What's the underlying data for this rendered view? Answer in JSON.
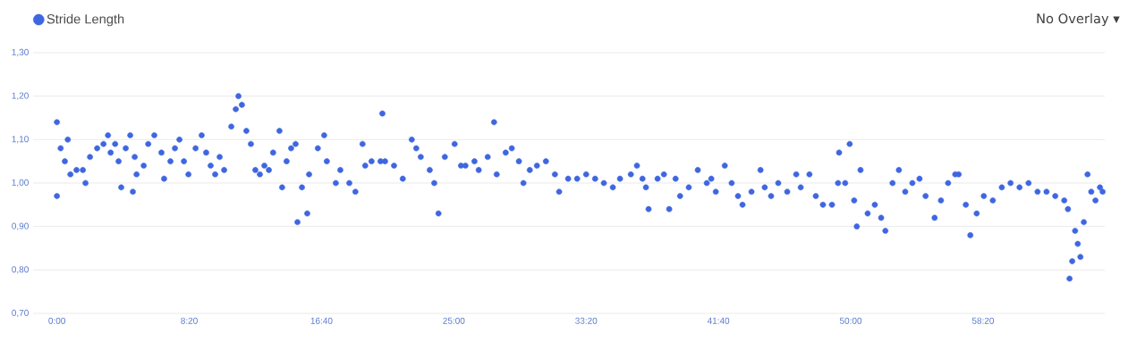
{
  "chart_data": {
    "type": "scatter",
    "legend": "top left",
    "grid": "y",
    "annotations": [
      "No Overlay ▾"
    ],
    "xlim": [
      -90,
      3960
    ],
    "ylim": [
      0.7,
      1.3
    ],
    "xticks": [
      {
        "value": 0,
        "label": "0:00"
      },
      {
        "value": 500,
        "label": "8:20"
      },
      {
        "value": 1000,
        "label": "16:40"
      },
      {
        "value": 1500,
        "label": "25:00"
      },
      {
        "value": 2000,
        "label": "33:20"
      },
      {
        "value": 2500,
        "label": "41:40"
      },
      {
        "value": 3000,
        "label": "50:00"
      },
      {
        "value": 3500,
        "label": "58:20"
      }
    ],
    "yticks": [
      {
        "value": 0.7,
        "label": "0,70"
      },
      {
        "value": 0.8,
        "label": "0,80"
      },
      {
        "value": 0.9,
        "label": "0,90"
      },
      {
        "value": 1.0,
        "label": "1,00"
      },
      {
        "value": 1.1,
        "label": "1,10"
      },
      {
        "value": 1.2,
        "label": "1,20"
      },
      {
        "value": 1.3,
        "label": "1,30"
      }
    ],
    "series": [
      {
        "name": "Stride Length",
        "color": "#3f66e0",
        "x": [
          0,
          0,
          14,
          30,
          41,
          51,
          74,
          98,
          108,
          125,
          152,
          176,
          193,
          203,
          220,
          233,
          243,
          260,
          277,
          287,
          294,
          301,
          328,
          345,
          368,
          395,
          405,
          429,
          446,
          463,
          480,
          497,
          524,
          547,
          564,
          581,
          598,
          615,
          632,
          659,
          676,
          686,
          699,
          716,
          733,
          750,
          767,
          784,
          801,
          817,
          841,
          851,
          868,
          885,
          902,
          909,
          926,
          946,
          953,
          986,
          1010,
          1020,
          1054,
          1071,
          1105,
          1128,
          1155,
          1165,
          1189,
          1223,
          1230,
          1240,
          1274,
          1307,
          1341,
          1358,
          1375,
          1409,
          1426,
          1442,
          1466,
          1503,
          1527,
          1544,
          1578,
          1594,
          1628,
          1652,
          1662,
          1696,
          1719,
          1746,
          1763,
          1787,
          1814,
          1848,
          1882,
          1898,
          1932,
          1966,
          2000,
          2034,
          2067,
          2101,
          2128,
          2169,
          2192,
          2213,
          2226,
          2236,
          2270,
          2294,
          2314,
          2338,
          2355,
          2388,
          2422,
          2456,
          2473,
          2490,
          2524,
          2550,
          2574,
          2591,
          2625,
          2659,
          2675,
          2699,
          2726,
          2760,
          2794,
          2811,
          2844,
          2868,
          2895,
          2929,
          2952,
          2956,
          2979,
          2996,
          3013,
          3023,
          3037,
          3064,
          3091,
          3115,
          3131,
          3158,
          3182,
          3206,
          3233,
          3260,
          3283,
          3317,
          3341,
          3368,
          3395,
          3408,
          3435,
          3452,
          3476,
          3503,
          3537,
          3571,
          3604,
          3638,
          3672,
          3706,
          3740,
          3773,
          3807,
          3821,
          3827,
          3837,
          3848,
          3858,
          3868,
          3881,
          3895,
          3909,
          3925,
          3942,
          3952
        ],
        "values": [
          0.97,
          1.14,
          1.08,
          1.05,
          1.1,
          1.02,
          1.03,
          1.03,
          1.0,
          1.06,
          1.08,
          1.09,
          1.11,
          1.07,
          1.09,
          1.05,
          0.99,
          1.08,
          1.11,
          0.98,
          1.06,
          1.02,
          1.04,
          1.09,
          1.11,
          1.07,
          1.01,
          1.05,
          1.08,
          1.1,
          1.05,
          1.02,
          1.08,
          1.11,
          1.07,
          1.04,
          1.02,
          1.06,
          1.03,
          1.13,
          1.17,
          1.2,
          1.18,
          1.12,
          1.09,
          1.03,
          1.02,
          1.04,
          1.03,
          1.07,
          1.12,
          0.99,
          1.05,
          1.08,
          1.09,
          0.91,
          0.99,
          0.93,
          1.02,
          1.08,
          1.11,
          1.05,
          1.0,
          1.03,
          1.0,
          0.98,
          1.09,
          1.04,
          1.05,
          1.05,
          1.16,
          1.05,
          1.04,
          1.01,
          1.1,
          1.08,
          1.06,
          1.03,
          1.0,
          0.93,
          1.06,
          1.09,
          1.04,
          1.04,
          1.05,
          1.03,
          1.06,
          1.14,
          1.02,
          1.07,
          1.08,
          1.05,
          1.0,
          1.03,
          1.04,
          1.05,
          1.02,
          0.98,
          1.01,
          1.01,
          1.02,
          1.01,
          1.0,
          0.99,
          1.01,
          1.02,
          1.04,
          1.01,
          0.99,
          0.94,
          1.01,
          1.02,
          0.94,
          1.01,
          0.97,
          0.99,
          1.03,
          1.0,
          1.01,
          0.98,
          1.04,
          1.0,
          0.97,
          0.95,
          0.98,
          1.03,
          0.99,
          0.97,
          1.0,
          0.98,
          1.02,
          0.99,
          1.02,
          0.97,
          0.95,
          0.95,
          1.0,
          1.07,
          1.0,
          1.09,
          0.96,
          0.9,
          1.03,
          0.93,
          0.95,
          0.92,
          0.89,
          1.0,
          1.03,
          0.98,
          1.0,
          1.01,
          0.97,
          0.92,
          0.96,
          1.0,
          1.02,
          1.02,
          0.95,
          0.88,
          0.93,
          0.97,
          0.96,
          0.99,
          1.0,
          0.99,
          1.0,
          0.98,
          0.98,
          0.97,
          0.96,
          0.94,
          0.78,
          0.82,
          0.89,
          0.86,
          0.83,
          0.91,
          1.02,
          0.98,
          0.96,
          0.99,
          0.98
        ]
      }
    ]
  }
}
